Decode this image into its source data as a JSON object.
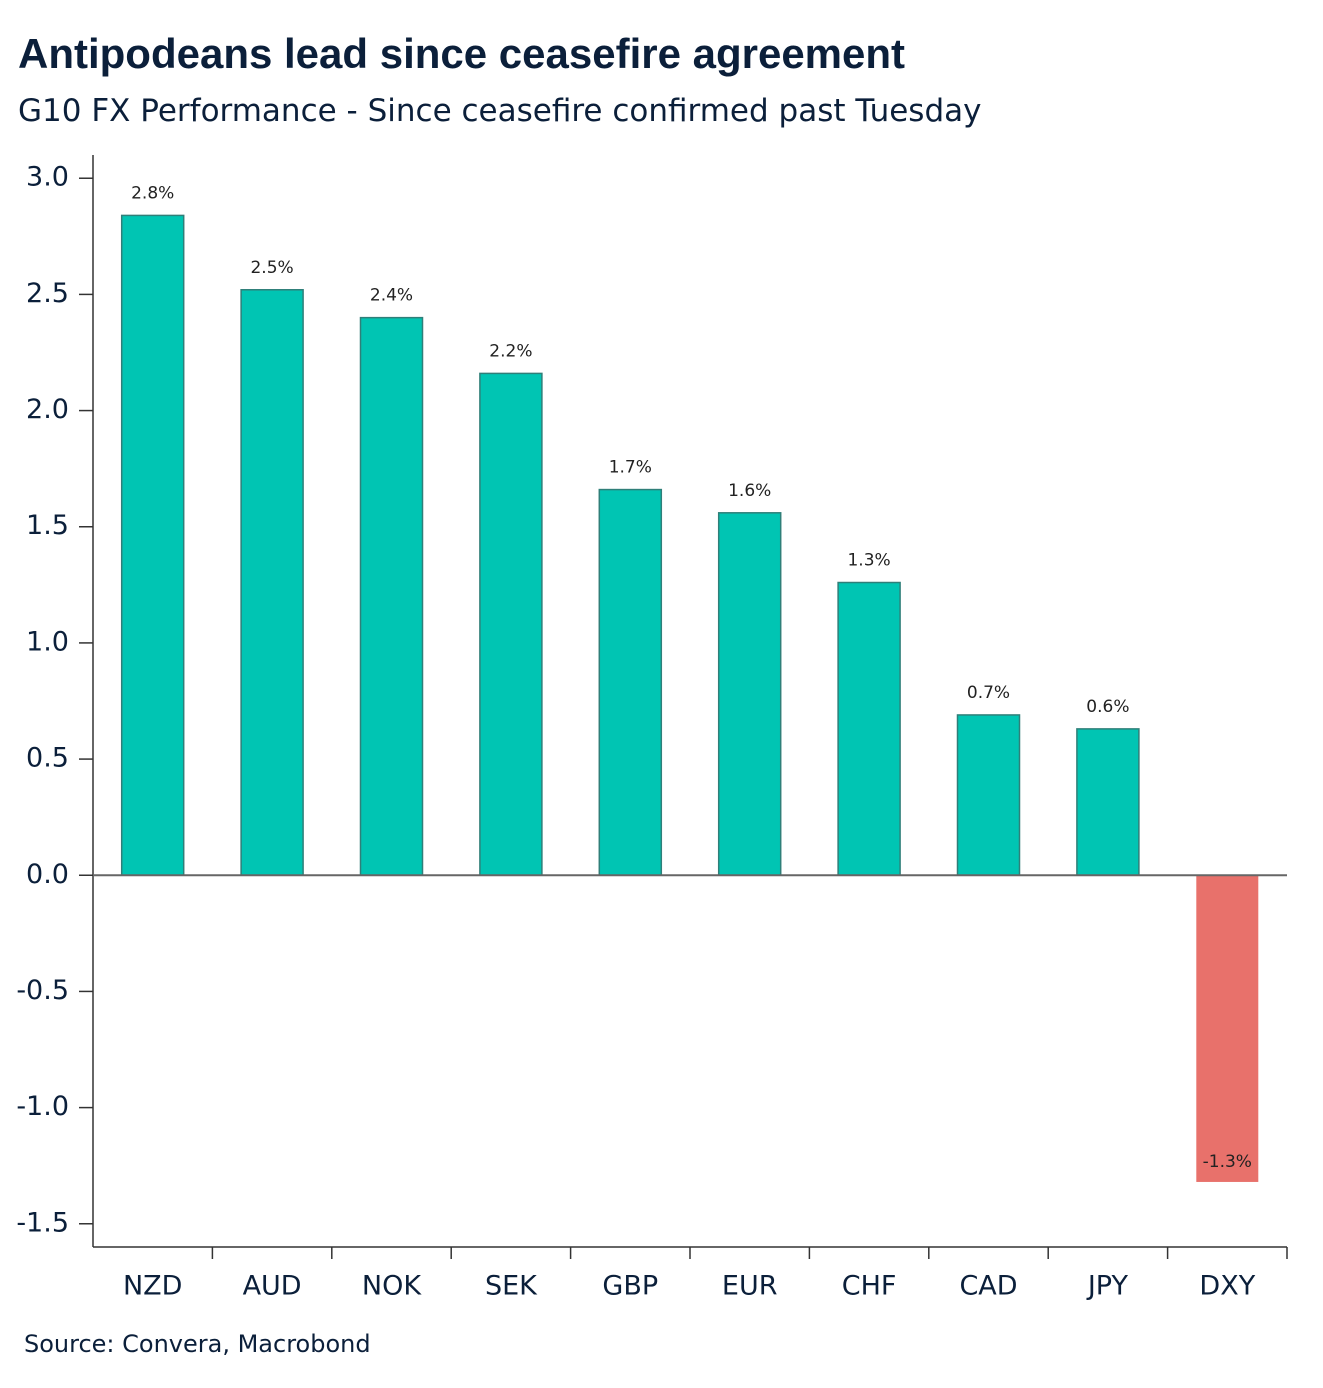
{
  "chart_data": {
    "type": "bar",
    "title": "Antipodeans lead since ceasefire agreement",
    "subtitle": "G10 FX Performance - Since ceasefire confirmed past Tuesday",
    "source": "Source: Convera, Macrobond",
    "categories": [
      "NZD",
      "AUD",
      "NOK",
      "SEK",
      "GBP",
      "EUR",
      "CHF",
      "CAD",
      "JPY",
      "DXY"
    ],
    "values": [
      2.84,
      2.52,
      2.4,
      2.16,
      1.66,
      1.56,
      1.26,
      0.69,
      0.63,
      -1.32
    ],
    "value_labels": [
      "2.8%",
      "2.5%",
      "2.4%",
      "2.2%",
      "1.7%",
      "1.6%",
      "1.3%",
      "0.7%",
      "0.6%",
      "-1.3%"
    ],
    "colors": [
      "#00c5b3",
      "#00c5b3",
      "#00c5b3",
      "#00c5b3",
      "#00c5b3",
      "#00c5b3",
      "#00c5b3",
      "#00c5b3",
      "#00c5b3",
      "#e8716b"
    ],
    "ylim": [
      -1.6,
      3.1
    ],
    "yticks": [
      {
        "value": 3,
        "label": "3.0"
      },
      2.5,
      {
        "value": 2,
        "label": "2.0"
      },
      1.5,
      {
        "value": 1,
        "label": "1.0"
      },
      0.5,
      {
        "value": 0,
        "label": "0.0"
      },
      -0.5,
      {
        "value": -1,
        "label": "-1.0"
      },
      -1.5
    ],
    "grid": false
  }
}
